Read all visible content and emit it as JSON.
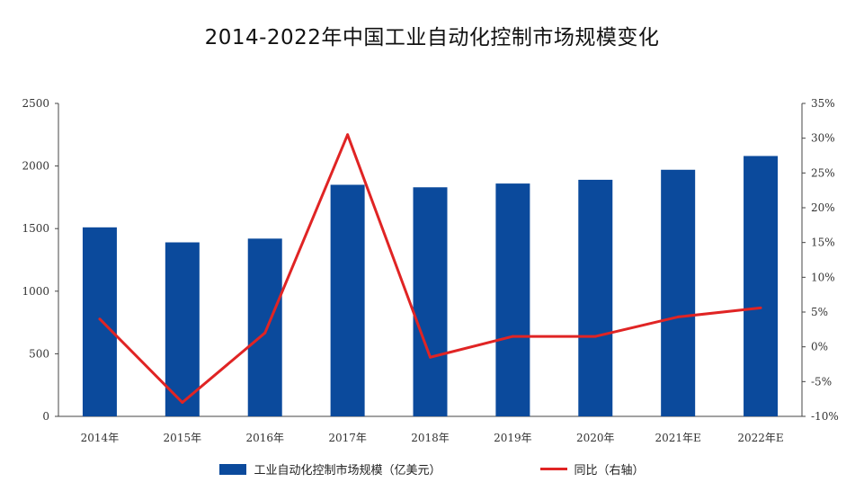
{
  "chart_data": {
    "type": "bar",
    "title": "2014-2022年中国工业自动化控制市场规模变化",
    "categories": [
      "2014年",
      "2015年",
      "2016年",
      "2017年",
      "2018年",
      "2019年",
      "2020年",
      "2021年E",
      "2022年E"
    ],
    "series": [
      {
        "name": "工业自动化控制市场规模（亿美元）",
        "type": "bar",
        "axis": "left",
        "color": "#0B4A9C",
        "values": [
          1510,
          1390,
          1420,
          1850,
          1830,
          1860,
          1890,
          1970,
          2080
        ]
      },
      {
        "name": "同比（右轴）",
        "type": "line",
        "axis": "right",
        "color": "#E02424",
        "values": [
          4,
          -8,
          2,
          30.5,
          -1.5,
          1.5,
          1.5,
          4.3,
          5.6
        ]
      }
    ],
    "left_axis": {
      "ylim": [
        0,
        2500
      ],
      "ticks": [
        "0",
        "500",
        "1000",
        "1500",
        "2000",
        "2500"
      ]
    },
    "right_axis": {
      "ylim": [
        -10,
        35
      ],
      "ticks": [
        "-10%",
        "-5%",
        "0%",
        "5%",
        "10%",
        "15%",
        "20%",
        "25%",
        "30%",
        "35%"
      ]
    },
    "grid": false,
    "legend": "bottom-center"
  }
}
